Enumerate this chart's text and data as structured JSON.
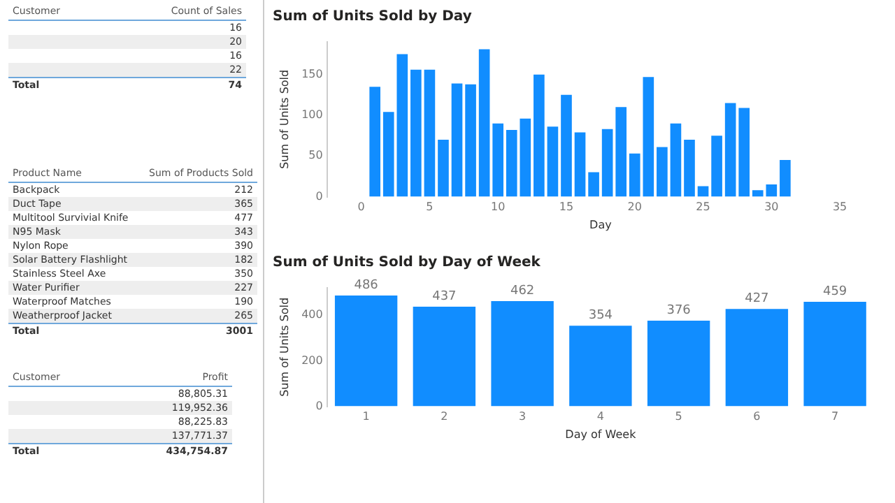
{
  "chart_data": [
    {
      "type": "other",
      "xlabel": "Customer",
      "ylabel": "Count of Sales",
      "categories": [
        null,
        null,
        null,
        null,
        "Total"
      ],
      "values": [
        16,
        20,
        16,
        22,
        74
      ],
      "data_labels": true
    },
    {
      "type": "other",
      "xlabel": "Product Name",
      "ylabel": "Sum of Products Sold",
      "categories": [
        "Backpack",
        "Duct Tape",
        "Multitool Survivial Knife",
        "N95 Mask",
        "Nylon Rope",
        "Solar Battery Flashlight",
        "Stainless Steel Axe",
        "Water Purifier",
        "Waterproof Matches",
        "Weatherproof Jacket",
        "Total"
      ],
      "values": [
        212,
        365,
        477,
        343,
        390,
        182,
        350,
        227,
        190,
        265,
        3001
      ],
      "data_labels": true
    },
    {
      "type": "other",
      "xlabel": "Customer",
      "ylabel": "Profit",
      "categories": [
        null,
        null,
        null,
        null,
        "Total"
      ],
      "values": [
        88805.31,
        119952.36,
        88225.83,
        137771.37,
        434754.87
      ],
      "value_labels": [
        "88,805.31",
        "119,952.36",
        "88,225.83",
        "137,771.37",
        "434,754.87"
      ]
    },
    {
      "type": "bar",
      "title": "Sum of Units Sold by Day",
      "xlabel": "Day",
      "ylabel": "Sum of Units Sold",
      "x": [
        1,
        2,
        3,
        4,
        5,
        6,
        7,
        8,
        9,
        10,
        11,
        12,
        13,
        14,
        15,
        16,
        17,
        18,
        19,
        20,
        21,
        22,
        23,
        24,
        25,
        26,
        27,
        28,
        29,
        30,
        31
      ],
      "values": [
        135,
        104,
        175,
        156,
        156,
        70,
        139,
        138,
        181,
        90,
        82,
        96,
        150,
        86,
        125,
        79,
        30,
        83,
        110,
        53,
        147,
        61,
        90,
        70,
        13,
        75,
        115,
        109,
        8,
        15,
        45
      ],
      "color": "#118dff",
      "xlim": [
        0,
        35
      ],
      "xticks": [
        0,
        5,
        10,
        15,
        20,
        25,
        30,
        35
      ],
      "ylim": [
        0,
        190
      ],
      "yticks": [
        0,
        50,
        100,
        150
      ]
    },
    {
      "type": "bar",
      "title": "Sum of Units Sold by Day of Week",
      "xlabel": "Day of Week",
      "ylabel": "Sum of Units Sold",
      "categories": [
        "1",
        "2",
        "3",
        "4",
        "5",
        "6",
        "7"
      ],
      "values": [
        486,
        437,
        462,
        354,
        376,
        427,
        459
      ],
      "color": "#118dff",
      "ylim": [
        0,
        520
      ],
      "yticks": [
        0,
        200,
        400
      ],
      "data_labels": true
    }
  ]
}
